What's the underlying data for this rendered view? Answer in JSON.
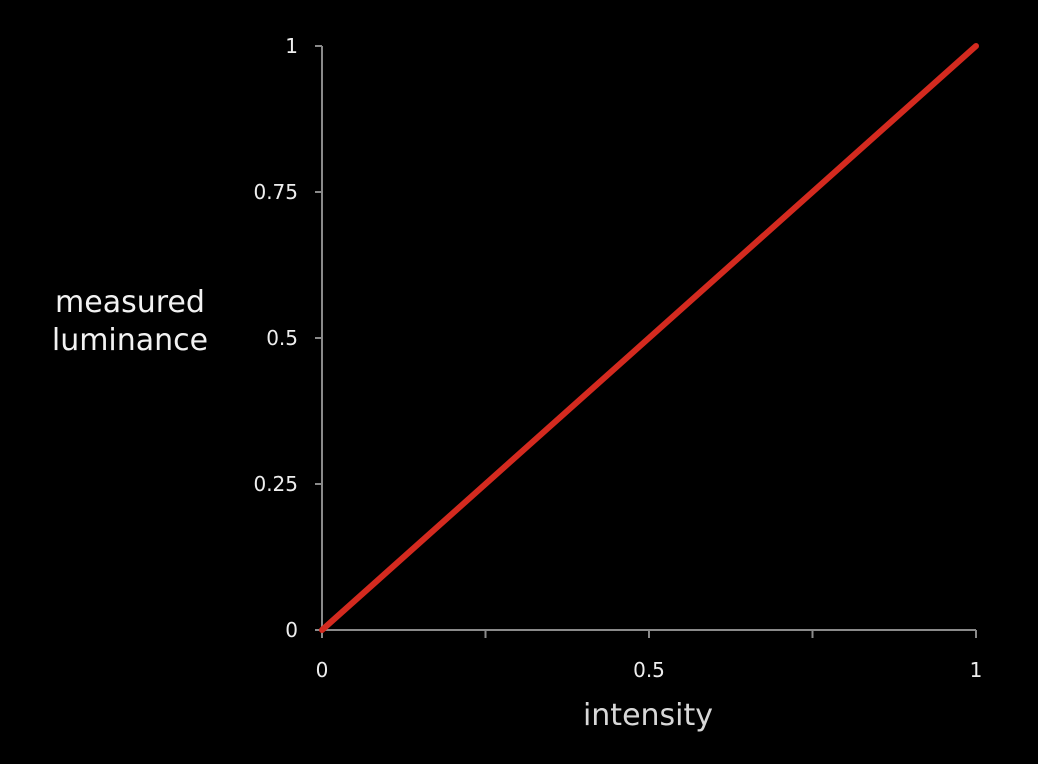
{
  "chart_data": {
    "type": "line",
    "title": "",
    "xlabel": "intensity",
    "ylabel": [
      "measured",
      "luminance"
    ],
    "xlim": [
      0,
      1
    ],
    "ylim": [
      0,
      1
    ],
    "x_ticks": [
      0,
      0.25,
      0.5,
      0.75,
      1
    ],
    "x_tick_labels": [
      "0",
      "",
      "0.5",
      "",
      "1"
    ],
    "y_ticks": [
      0,
      0.25,
      0.5,
      0.75,
      1
    ],
    "y_tick_labels": [
      "0",
      "0.25",
      "0.5",
      "0.75",
      "1"
    ],
    "grid": false,
    "series": [
      {
        "x": [
          0,
          1
        ],
        "y": [
          0,
          1
        ],
        "color": "#d42a1f"
      }
    ],
    "colors": {
      "background": "#000000",
      "axis": "#8a8a8a",
      "text": "#eeeeee"
    }
  }
}
